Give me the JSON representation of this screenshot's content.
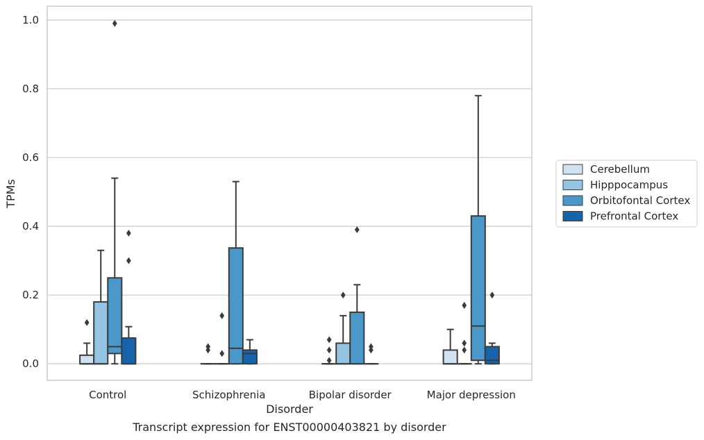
{
  "caption": "Transcript expression for ENST00000403821 by disorder",
  "chart_data": {
    "type": "box",
    "xlabel": "Disorder",
    "ylabel": "TPMs",
    "ylim": [
      -0.048,
      1.04
    ],
    "yticks": [
      0.0,
      0.2,
      0.4,
      0.6,
      0.8,
      1.0
    ],
    "ytick_labels": [
      "0.0",
      "0.2",
      "0.4",
      "0.6",
      "0.8",
      "1.0"
    ],
    "grid": true,
    "legend_position": "right",
    "categories": [
      "Control",
      "Schizophrenia",
      "Bipolar disorder",
      "Major depression"
    ],
    "series": [
      {
        "name": "Cerebellum",
        "color": "#d0e1f2",
        "boxes": [
          {
            "q1": 0,
            "median": 0,
            "q3": 0.025,
            "whislo": 0,
            "whishi": 0.06,
            "fliers": [
              0.12
            ]
          },
          {
            "q1": 0,
            "median": 0,
            "q3": 0,
            "whislo": 0,
            "whishi": 0,
            "fliers": [
              0.04,
              0.05
            ]
          },
          {
            "q1": 0,
            "median": 0,
            "q3": 0,
            "whislo": 0,
            "whishi": 0,
            "fliers": [
              0.01,
              0.04,
              0.07
            ]
          },
          {
            "q1": 0,
            "median": 0,
            "q3": 0.04,
            "whislo": 0,
            "whishi": 0.1,
            "fliers": []
          }
        ]
      },
      {
        "name": "Hipppocampus",
        "color": "#94c4df",
        "boxes": [
          {
            "q1": 0,
            "median": 0,
            "q3": 0.18,
            "whislo": 0,
            "whishi": 0.33,
            "fliers": []
          },
          {
            "q1": 0,
            "median": 0,
            "q3": 0,
            "whislo": 0,
            "whishi": 0,
            "fliers": [
              0.03,
              0.14
            ]
          },
          {
            "q1": 0,
            "median": 0,
            "q3": 0.06,
            "whislo": 0,
            "whishi": 0.14,
            "fliers": [
              0.2
            ]
          },
          {
            "q1": 0,
            "median": 0,
            "q3": 0,
            "whislo": 0,
            "whishi": 0,
            "fliers": [
              0.04,
              0.06,
              0.17
            ]
          }
        ]
      },
      {
        "name": "Orbitofontal Cortex",
        "color": "#4a98c9",
        "boxes": [
          {
            "q1": 0.03,
            "median": 0.05,
            "q3": 0.25,
            "whislo": 0,
            "whishi": 0.54,
            "fliers": [
              0.99
            ]
          },
          {
            "q1": 0,
            "median": 0.045,
            "q3": 0.337,
            "whislo": 0,
            "whishi": 0.53,
            "fliers": []
          },
          {
            "q1": 0,
            "median": 0,
            "q3": 0.15,
            "whislo": 0,
            "whishi": 0.23,
            "fliers": [
              0.39
            ]
          },
          {
            "q1": 0.01,
            "median": 0.11,
            "q3": 0.43,
            "whislo": 0,
            "whishi": 0.78,
            "fliers": []
          }
        ]
      },
      {
        "name": "Prefrontal Cortex",
        "color": "#1764ab",
        "boxes": [
          {
            "q1": 0,
            "median": 0,
            "q3": 0.075,
            "whislo": 0,
            "whishi": 0.108,
            "fliers": [
              0.3,
              0.38
            ]
          },
          {
            "q1": 0,
            "median": 0.03,
            "q3": 0.04,
            "whislo": 0,
            "whishi": 0.07,
            "fliers": []
          },
          {
            "q1": 0,
            "median": 0,
            "q3": 0,
            "whislo": 0,
            "whishi": 0,
            "fliers": [
              0.04,
              0.05
            ]
          },
          {
            "q1": 0,
            "median": 0.01,
            "q3": 0.05,
            "whislo": 0,
            "whishi": 0.06,
            "fliers": [
              0.2
            ]
          }
        ]
      }
    ]
  }
}
